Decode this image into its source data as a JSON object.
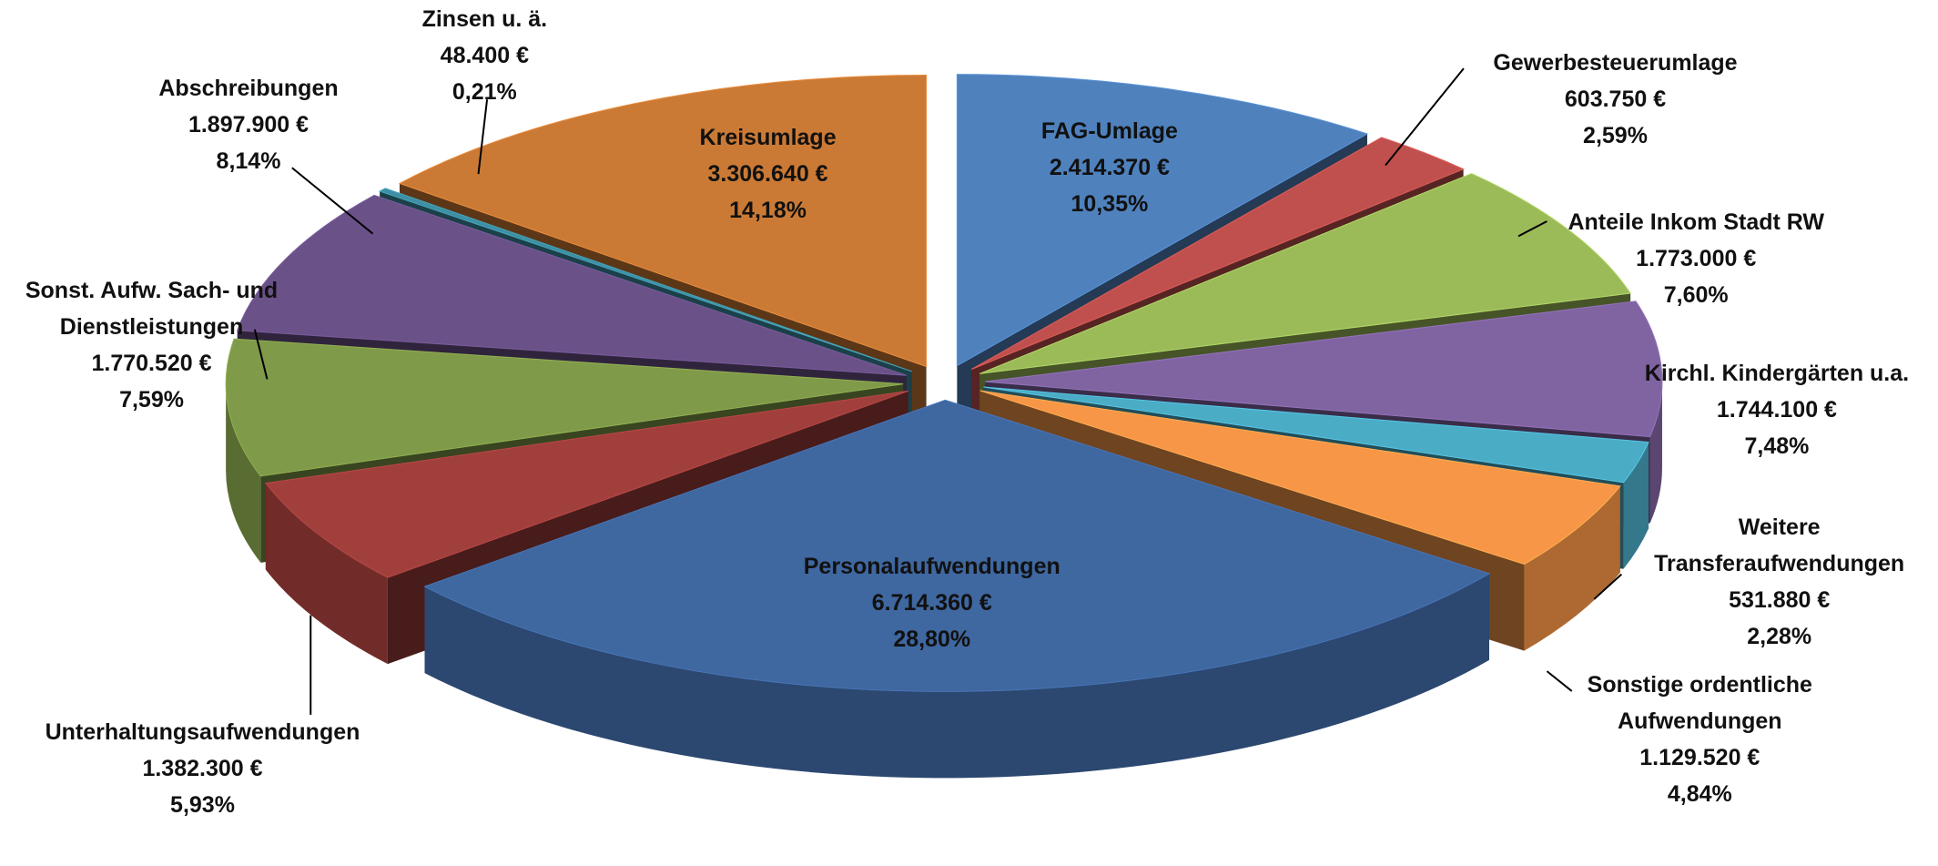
{
  "chart_data": {
    "type": "pie",
    "categories": [
      "FAG-Umlage",
      "Gewerbesteuerumlage",
      "Anteile Inkom Stadt RW",
      "Kirchl. Kindergärten u.a.",
      "Weitere Transferaufwendungen",
      "Sonstige ordentliche Aufwendungen",
      "Personalaufwendungen",
      "Unterhaltungsaufwendungen",
      "Sonst. Aufw. Sach- und Dienstleistungen",
      "Abschreibungen",
      "Zinsen u. ä.",
      "Kreisumlage"
    ],
    "values": [
      2414370,
      603750,
      1773000,
      1744100,
      531880,
      1129520,
      6714360,
      1382300,
      1770520,
      1897900,
      48400,
      3306640
    ],
    "value_labels": [
      "2.414.370 €",
      "603.750 €",
      "1.773.000 €",
      "1.744.100 €",
      "531.880 €",
      "1.129.520 €",
      "6.714.360 €",
      "1.382.300 €",
      "1.770.520 €",
      "1.897.900 €",
      "48.400 €",
      "3.306.640 €"
    ],
    "percents": [
      10.35,
      2.59,
      7.6,
      7.48,
      2.28,
      4.84,
      28.8,
      5.93,
      7.59,
      8.14,
      0.21,
      14.18
    ],
    "percent_labels": [
      "10,35%",
      "2,59%",
      "7,60%",
      "7,48%",
      "2,28%",
      "4,84%",
      "28,80%",
      "5,93%",
      "7,59%",
      "8,14%",
      "0,21%",
      "14,18%"
    ],
    "colors": [
      "#4f81bd",
      "#c0504d",
      "#9bbb59",
      "#8064a2",
      "#4bacc6",
      "#f79646",
      "#3f67a0",
      "#a13f3c",
      "#7f9a48",
      "#6a5188",
      "#3d8fa3",
      "#cb7a35"
    ]
  }
}
